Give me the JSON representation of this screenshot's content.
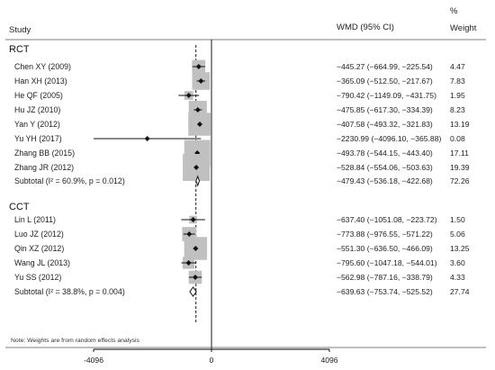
{
  "chart_data": {
    "type": "forest",
    "header": {
      "study": "Study",
      "effect": "WMD (95% CI)",
      "weight_pct": "%",
      "weight": "Weight"
    },
    "x_ticks": [
      "-4096",
      "0",
      "4096"
    ],
    "xlim": [
      -4096,
      4096
    ],
    "overall_effect": -540,
    "groups": [
      {
        "name": "RCT",
        "studies": [
          {
            "study": "Chen XY (2009)",
            "wmd": -445.27,
            "lo": -664.99,
            "hi": -225.54,
            "ci_text": "−445.27 (−664.99, −225.54)",
            "weight": "4.47"
          },
          {
            "study": "Han XH (2013)",
            "wmd": -365.09,
            "lo": -512.5,
            "hi": -217.67,
            "ci_text": "−365.09 (−512.50, −217.67)",
            "weight": "7.83"
          },
          {
            "study": "He QF (2005)",
            "wmd": -790.42,
            "lo": -1149.09,
            "hi": -431.75,
            "ci_text": "−790.42 (−1149.09, −431.75)",
            "weight": "1.95"
          },
          {
            "study": "Hu JZ (2010)",
            "wmd": -475.85,
            "lo": -617.3,
            "hi": -334.39,
            "ci_text": "−475.85 (−617.30, −334.39)",
            "weight": "8.23"
          },
          {
            "study": "Yan Y (2012)",
            "wmd": -407.58,
            "lo": -493.32,
            "hi": -321.83,
            "ci_text": "−407.58 (−493.32, −321.83)",
            "weight": "13.19"
          },
          {
            "study": "Yu YH (2017)",
            "wmd": -2230.99,
            "lo": -4096.1,
            "hi": -365.88,
            "ci_text": "−2230.99 (−4096.10, −365.88)",
            "weight": "0.08"
          },
          {
            "study": "Zhang BB (2015)",
            "wmd": -493.78,
            "lo": -544.15,
            "hi": -443.4,
            "ci_text": "−493.78 (−544.15, −443.40)",
            "weight": "17.11"
          },
          {
            "study": "Zhang JR (2012)",
            "wmd": -528.84,
            "lo": -554.06,
            "hi": -503.63,
            "ci_text": "−528.84 (−554.06, −503.63)",
            "weight": "19.39"
          }
        ],
        "subtotal": {
          "label": "Subtotal  (I² = 60.9%, p = 0.012)",
          "wmd": -479.43,
          "lo": -536.18,
          "hi": -422.68,
          "ci_text": "−479.43 (−536.18, −422.68)",
          "weight": "72.26"
        }
      },
      {
        "name": "CCT",
        "studies": [
          {
            "study": "Lin L (2011)",
            "wmd": -637.4,
            "lo": -1051.08,
            "hi": -223.72,
            "ci_text": "−637.40 (−1051.08, −223.72)",
            "weight": "1.50"
          },
          {
            "study": "Luo JZ (2012)",
            "wmd": -773.88,
            "lo": -976.55,
            "hi": -571.22,
            "ci_text": "−773.88 (−976.55, −571.22)",
            "weight": "5.06"
          },
          {
            "study": "Qin XZ (2012)",
            "wmd": -551.3,
            "lo": -636.5,
            "hi": -466.09,
            "ci_text": "−551.30 (−636.50, −466.09)",
            "weight": "13.25"
          },
          {
            "study": "Wang JL (2013)",
            "wmd": -795.6,
            "lo": -1047.18,
            "hi": -544.01,
            "ci_text": "−795.60 (−1047.18, −544.01)",
            "weight": "3.60"
          },
          {
            "study": "Yu SS (2012)",
            "wmd": -562.98,
            "lo": -787.16,
            "hi": -338.79,
            "ci_text": "−562.98 (−787.16, −338.79)",
            "weight": "4.33"
          }
        ],
        "subtotal": {
          "label": "Subtotal  (I² = 38.8%, p = 0.004)",
          "wmd": -639.63,
          "lo": -753.74,
          "hi": -525.52,
          "ci_text": "−639.63 (−753.74, −525.52)",
          "weight": "27.74"
        }
      }
    ],
    "note": "Note: Weights are from random effects analysis"
  },
  "colors": {
    "box": "#c0c0c0",
    "point": "#111111",
    "line": "#111111",
    "diamond": "#111111"
  }
}
